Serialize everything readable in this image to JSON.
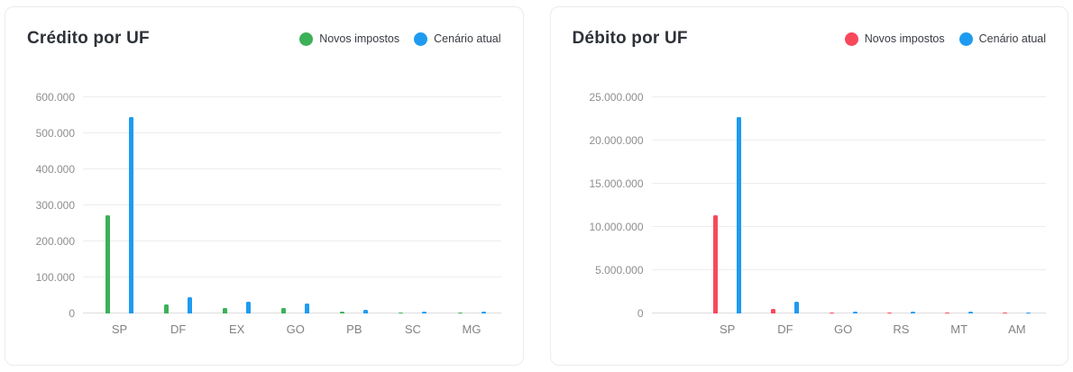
{
  "chart_data": [
    {
      "type": "bar",
      "title": "Crédito por UF",
      "categories": [
        "SP",
        "DF",
        "EX",
        "GO",
        "PB",
        "SC",
        "MG"
      ],
      "series": [
        {
          "name": "Novos impostos",
          "color": "#3cb158",
          "values": [
            272000,
            24000,
            15000,
            15000,
            6000,
            3000,
            2000
          ]
        },
        {
          "name": "Cenário atual",
          "color": "#1e9bf0",
          "values": [
            545000,
            45000,
            32000,
            28000,
            11000,
            6000,
            4000
          ]
        }
      ],
      "xlabel": "",
      "ylabel": "",
      "ylim": [
        0,
        600000
      ],
      "ytick_step": 100000,
      "ytick_labels": [
        "0",
        "100.000",
        "200.000",
        "300.000",
        "400.000",
        "500.000",
        "600.000"
      ],
      "grid": "horizontal",
      "legend_position": "top-right"
    },
    {
      "type": "bar",
      "title": "Débito por UF",
      "categories": [
        "SP",
        "DF",
        "GO",
        "RS",
        "MT",
        "AM"
      ],
      "series": [
        {
          "name": "Novos impostos",
          "color": "#f8485c",
          "values": [
            11400000,
            550000,
            130000,
            120000,
            120000,
            100000
          ]
        },
        {
          "name": "Cenário atual",
          "color": "#1e9bf0",
          "values": [
            22700000,
            1400000,
            190000,
            170000,
            160000,
            140000
          ]
        }
      ],
      "xlabel": "",
      "ylabel": "",
      "ylim": [
        0,
        25000000
      ],
      "ytick_step": 5000000,
      "ytick_labels": [
        "0",
        "5.000.000",
        "10.000.000",
        "15.000.000",
        "20.000.000",
        "25.000.000"
      ],
      "grid": "horizontal",
      "legend_position": "top-right"
    }
  ]
}
